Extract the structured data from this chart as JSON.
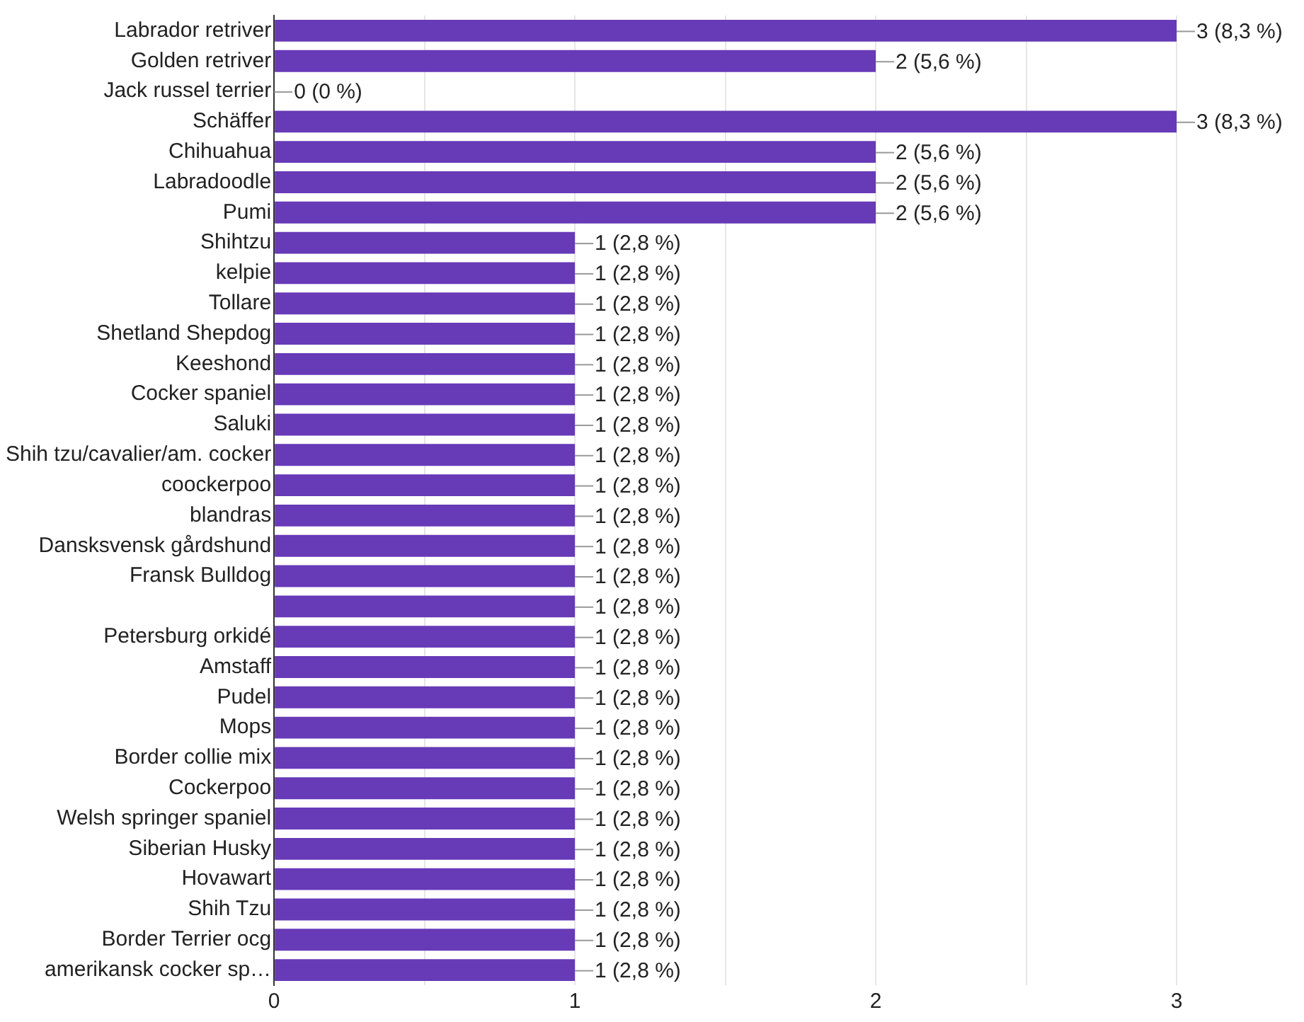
{
  "chart_data": {
    "type": "bar",
    "orientation": "horizontal",
    "categories": [
      "Labrador retriver",
      "Golden retriver",
      "Jack russel terrier",
      "Schäffer",
      "Chihuahua",
      "Labradoodle",
      "Pumi",
      "Shihtzu",
      "kelpie",
      "Tollare",
      "Shetland Shepdog",
      "Keeshond",
      "Cocker spaniel",
      "Saluki",
      "Shih tzu/cavalier/am. cocker",
      "coockerpoo",
      "blandras",
      "Dansksvensk gårdshund",
      "Fransk Bulldog",
      null,
      "Petersburg orkidé",
      "Amstaff",
      "Pudel",
      "Mops",
      "Border collie mix",
      "Cockerpoo",
      "Welsh springer spaniel",
      "Siberian Husky",
      "Hovawart",
      "Shih Tzu",
      "Border Terrier ocg",
      "amerikansk cocker sp…"
    ],
    "values": [
      3,
      2,
      0,
      3,
      2,
      2,
      2,
      1,
      1,
      1,
      1,
      1,
      1,
      1,
      1,
      1,
      1,
      1,
      1,
      1,
      1,
      1,
      1,
      1,
      1,
      1,
      1,
      1,
      1,
      1,
      1,
      1
    ],
    "value_labels": [
      "3 (8,3 %)",
      "2 (5,6 %)",
      "0 (0 %)",
      "3 (8,3 %)",
      "2 (5,6 %)",
      "2 (5,6 %)",
      "2 (5,6 %)",
      "1 (2,8 %)",
      "1 (2,8 %)",
      "1 (2,8 %)",
      "1 (2,8 %)",
      "1 (2,8 %)",
      "1 (2,8 %)",
      "1 (2,8 %)",
      "1 (2,8 %)",
      "1 (2,8 %)",
      "1 (2,8 %)",
      "1 (2,8 %)",
      "1 (2,8 %)",
      "1 (2,8 %)",
      "1 (2,8 %)",
      "1 (2,8 %)",
      "1 (2,8 %)",
      "1 (2,8 %)",
      "1 (2,8 %)",
      "1 (2,8 %)",
      "1 (2,8 %)",
      "1 (2,8 %)",
      "1 (2,8 %)",
      "1 (2,8 %)",
      "1 (2,8 %)",
      "1 (2,8 %)"
    ],
    "color": "#673ab7",
    "xlim": [
      0,
      3
    ],
    "xticks": [
      0,
      {
        "value": 0.5,
        "label": null
      },
      1,
      {
        "value": 1.5,
        "label": null
      },
      2,
      {
        "value": 2.5,
        "label": null
      },
      3
    ],
    "grid": "x"
  }
}
